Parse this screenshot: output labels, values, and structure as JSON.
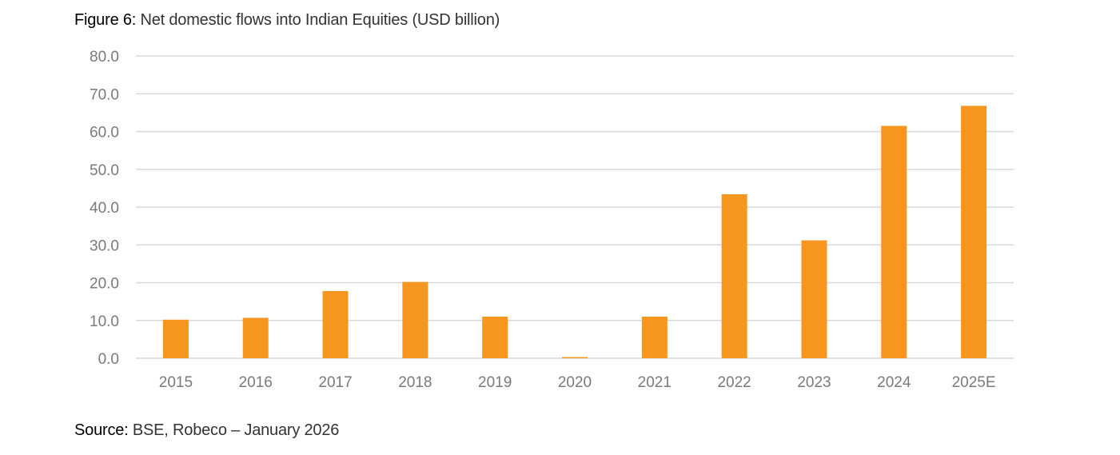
{
  "figure": {
    "label": "Figure 6:",
    "title": "Net domestic flows into Indian Equities (USD billion)"
  },
  "source": {
    "label": "Source:",
    "text": "BSE, Robeco – January 2026"
  },
  "chart_data": {
    "type": "bar",
    "title": "Net domestic flows into Indian Equities (USD billion)",
    "categories": [
      "2015",
      "2016",
      "2017",
      "2018",
      "2019",
      "2020",
      "2021",
      "2022",
      "2023",
      "2024",
      "2025E"
    ],
    "values": [
      10.2,
      10.7,
      17.8,
      20.2,
      11.0,
      0.3,
      11.0,
      43.4,
      31.2,
      61.5,
      66.8
    ],
    "ylim": [
      0,
      80
    ],
    "yticks": [
      "0.0",
      "10.0",
      "20.0",
      "30.0",
      "40.0",
      "50.0",
      "60.0",
      "70.0",
      "80.0"
    ],
    "xlabel": "",
    "ylabel": "",
    "grid": true,
    "legend": "none",
    "bar_color": "#F7961E"
  }
}
